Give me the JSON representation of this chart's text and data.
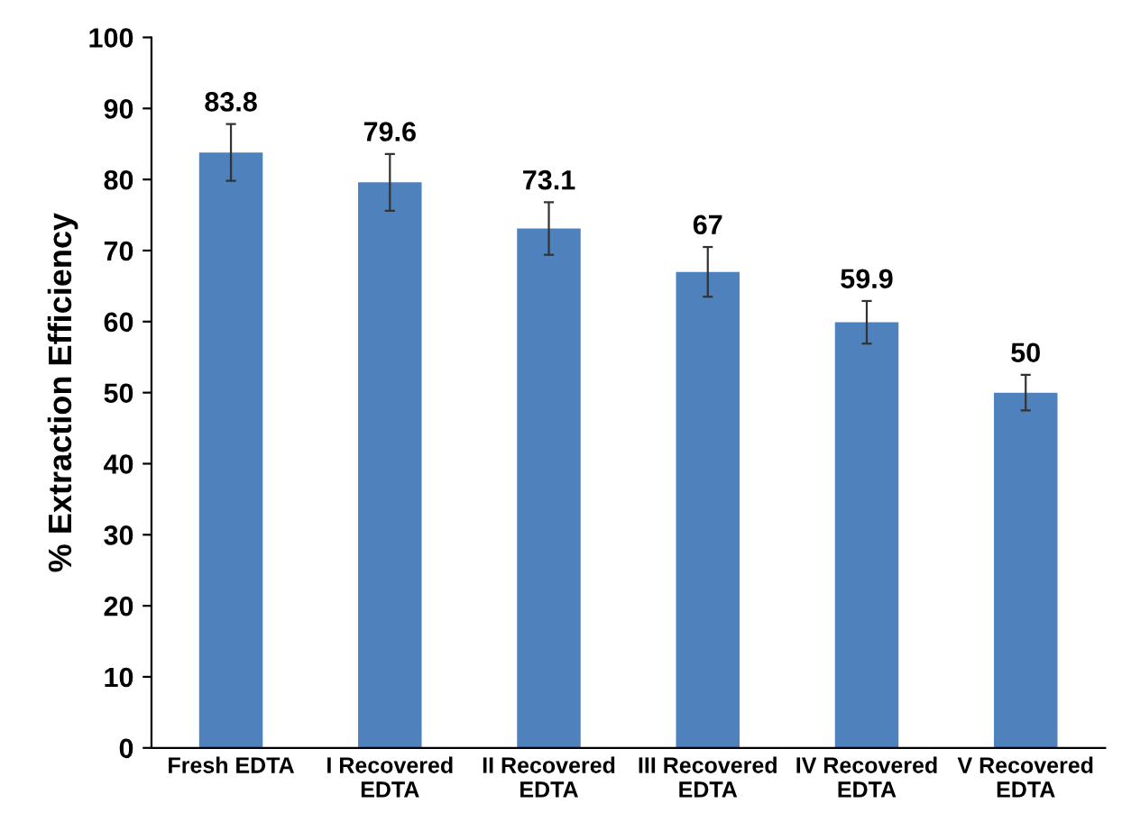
{
  "chart_data": {
    "type": "bar",
    "ylabel": "% Extraction Efficiency",
    "categories": [
      "Fresh EDTA",
      "I Recovered\nEDTA",
      "II Recovered\nEDTA",
      "III Recovered\nEDTA",
      "IV Recovered\nEDTA",
      "V Recovered\nEDTA"
    ],
    "values": [
      83.8,
      79.6,
      73.1,
      67,
      59.9,
      50
    ],
    "errors": [
      4,
      4,
      3.7,
      3.5,
      3,
      2.5
    ],
    "color": "#4f81bd",
    "data_labels": true,
    "grid": false,
    "legend": false,
    "ylim": [
      0,
      100
    ],
    "yticks": [
      0,
      10,
      20,
      30,
      40,
      50,
      60,
      70,
      80,
      90,
      100
    ]
  }
}
